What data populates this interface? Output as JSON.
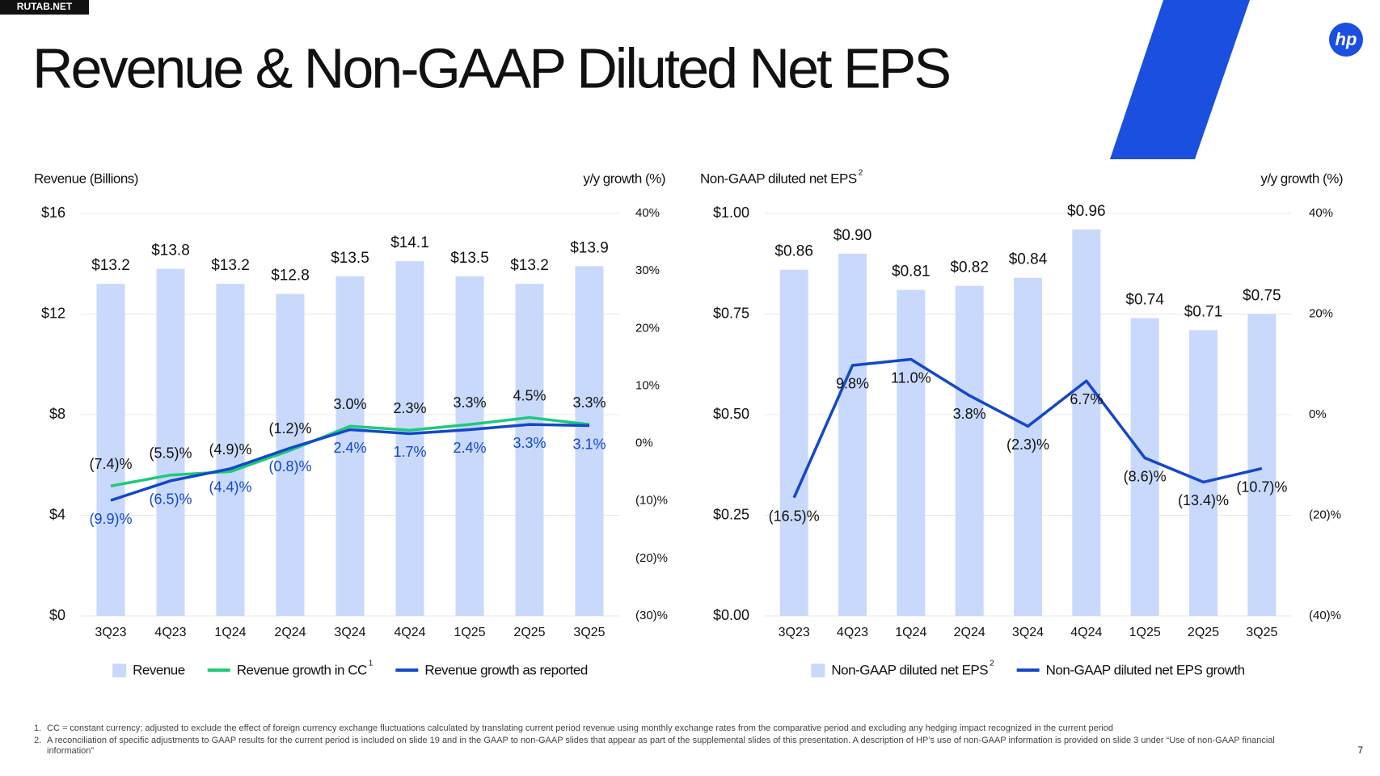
{
  "watermark": "RUTAB.NET",
  "title": "Revenue & Non-GAAP Diluted Net EPS",
  "logo": "hp",
  "page_number": "7",
  "footnotes": [
    {
      "marker": "1.",
      "text": "CC = constant currency; adjusted to exclude the effect of foreign currency exchange fluctuations calculated by translating current period revenue using monthly exchange rates from the comparative period and excluding any hedging impact recognized in the current period"
    },
    {
      "marker": "2.",
      "text": "A reconciliation of specific adjustments to GAAP results for the current period is included on slide 19 and in the GAAP to non-GAAP slides that appear as part of the supplemental slides of this presentation. A description of HP’s use of non-GAAP information is provided on slide 3 under “Use of non-GAAP financial information”"
    }
  ],
  "chart_data": [
    {
      "type": "bar",
      "y_label": "Revenue (Billions)",
      "y2_label": "y/y growth (%)",
      "categories": [
        "3Q23",
        "4Q23",
        "1Q24",
        "2Q24",
        "3Q24",
        "4Q24",
        "1Q25",
        "2Q25",
        "3Q25"
      ],
      "ylim": [
        0,
        16
      ],
      "yticks": [
        {
          "value": 0,
          "label": "$0"
        },
        {
          "value": 4,
          "label": "$4"
        },
        {
          "value": 8,
          "label": "$8"
        },
        {
          "value": 12,
          "label": "$12"
        },
        {
          "value": 16,
          "label": "$16"
        }
      ],
      "y2lim": [
        -30,
        40
      ],
      "y2ticks": [
        {
          "value": -30,
          "label": "(30)%"
        },
        {
          "value": -20,
          "label": "(20)%"
        },
        {
          "value": -10,
          "label": "(10)%"
        },
        {
          "value": 0,
          "label": "0%"
        },
        {
          "value": 10,
          "label": "10%"
        },
        {
          "value": 20,
          "label": "20%"
        },
        {
          "value": 30,
          "label": "30%"
        },
        {
          "value": 40,
          "label": "40%"
        }
      ],
      "grid": true,
      "series": [
        {
          "name": "Revenue",
          "color": "#c9d9fb",
          "values": [
            13.2,
            13.8,
            13.2,
            12.8,
            13.5,
            14.1,
            13.5,
            13.2,
            13.9
          ],
          "value_labels": [
            "$13.2",
            "$13.8",
            "$13.2",
            "$12.8",
            "$13.5",
            "$14.1",
            "$13.5",
            "$13.2",
            "$13.9"
          ]
        },
        {
          "name": "Revenue growth in CC",
          "note": "1",
          "color": "#1fc97b",
          "axis": "y2",
          "values": [
            -7.4,
            -5.5,
            -4.9,
            -1.2,
            3.0,
            2.3,
            3.3,
            4.5,
            3.3
          ],
          "value_labels": [
            "(7.4)%",
            "(5.5)%",
            "(4.9)%",
            "(1.2)%",
            "3.0%",
            "2.3%",
            "3.3%",
            "4.5%",
            "3.3%"
          ]
        },
        {
          "name": "Revenue growth as reported",
          "color": "#1348c8",
          "axis": "y2",
          "values": [
            -9.9,
            -6.5,
            -4.4,
            -0.8,
            2.4,
            1.7,
            2.4,
            3.3,
            3.1
          ],
          "value_labels": [
            "(9.9)%",
            "(6.5)%",
            "(4.4)%",
            "(0.8)%",
            "2.4%",
            "1.7%",
            "2.4%",
            "3.3%",
            "3.1%"
          ]
        }
      ]
    },
    {
      "type": "bar",
      "y_label": "Non-GAAP diluted net EPS",
      "y_label_note": "2",
      "y2_label": "y/y growth (%)",
      "categories": [
        "3Q23",
        "4Q23",
        "1Q24",
        "2Q24",
        "3Q24",
        "4Q24",
        "1Q25",
        "2Q25",
        "3Q25"
      ],
      "ylim": [
        0,
        1
      ],
      "yticks": [
        {
          "value": 0,
          "label": "$0.00"
        },
        {
          "value": 0.25,
          "label": "$0.25"
        },
        {
          "value": 0.5,
          "label": "$0.50"
        },
        {
          "value": 0.75,
          "label": "$0.75"
        },
        {
          "value": 1,
          "label": "$1.00"
        }
      ],
      "y2lim": [
        -40,
        40
      ],
      "y2ticks": [
        {
          "value": -40,
          "label": "(40)%"
        },
        {
          "value": -20,
          "label": "(20)%"
        },
        {
          "value": 0,
          "label": "0%"
        },
        {
          "value": 20,
          "label": "20%"
        },
        {
          "value": 40,
          "label": "40%"
        }
      ],
      "grid": true,
      "series": [
        {
          "name": "Non-GAAP diluted net EPS",
          "note": "2",
          "color": "#c9d9fb",
          "values": [
            0.86,
            0.9,
            0.81,
            0.82,
            0.84,
            0.96,
            0.74,
            0.71,
            0.75
          ],
          "value_labels": [
            "$0.86",
            "$0.90",
            "$0.81",
            "$0.82",
            "$0.84",
            "$0.96",
            "$0.74",
            "$0.71",
            "$0.75"
          ]
        },
        {
          "name": "Non-GAAP diluted net EPS growth",
          "color": "#1348c8",
          "axis": "y2",
          "values": [
            -16.5,
            9.8,
            11.0,
            3.8,
            -2.3,
            6.7,
            -8.6,
            -13.4,
            -10.7
          ],
          "value_labels": [
            "(16.5)%",
            "9.8%",
            "11.0%",
            "3.8%",
            "(2.3)%",
            "6.7%",
            "(8.6)%",
            "(13.4)%",
            "(10.7)%"
          ]
        }
      ]
    }
  ]
}
